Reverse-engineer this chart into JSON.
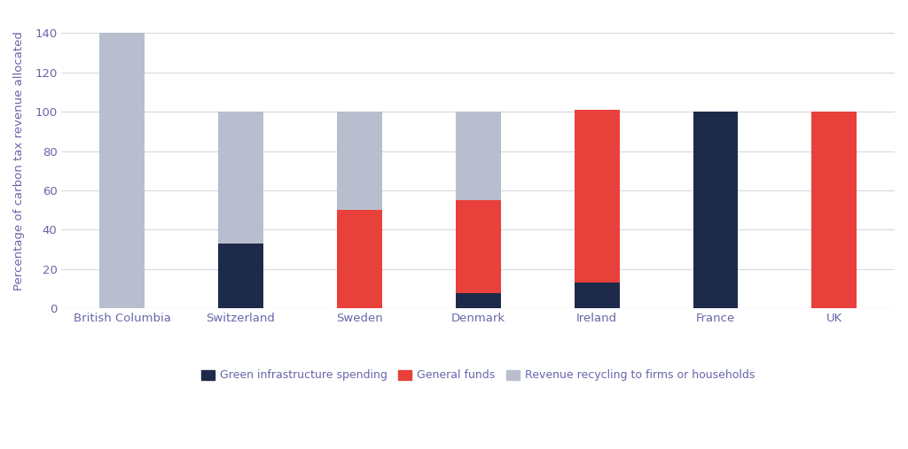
{
  "categories": [
    "British Columbia",
    "Switzerland",
    "Sweden",
    "Denmark",
    "Ireland",
    "France",
    "UK"
  ],
  "green_infra": [
    0,
    33,
    0,
    8,
    13,
    100,
    0
  ],
  "general_funds": [
    0,
    0,
    50,
    47,
    88,
    0,
    100
  ],
  "revenue_recycling": [
    140,
    67,
    50,
    45,
    0,
    0,
    0
  ],
  "color_green_infra": "#1e2a4a",
  "color_general_funds": "#e8403a",
  "color_revenue_recycling": "#b8bece",
  "ylabel": "Percentage of carbon tax revenue allocated",
  "ylim": [
    0,
    150
  ],
  "yticks": [
    0,
    20,
    40,
    60,
    80,
    100,
    120,
    140
  ],
  "legend_labels": [
    "Green infrastructure spending",
    "General funds",
    "Revenue recycling to firms or households"
  ],
  "background_color": "#ffffff",
  "bar_width": 0.38,
  "grid_color": "#d8d8e0",
  "text_color": "#6666aa"
}
